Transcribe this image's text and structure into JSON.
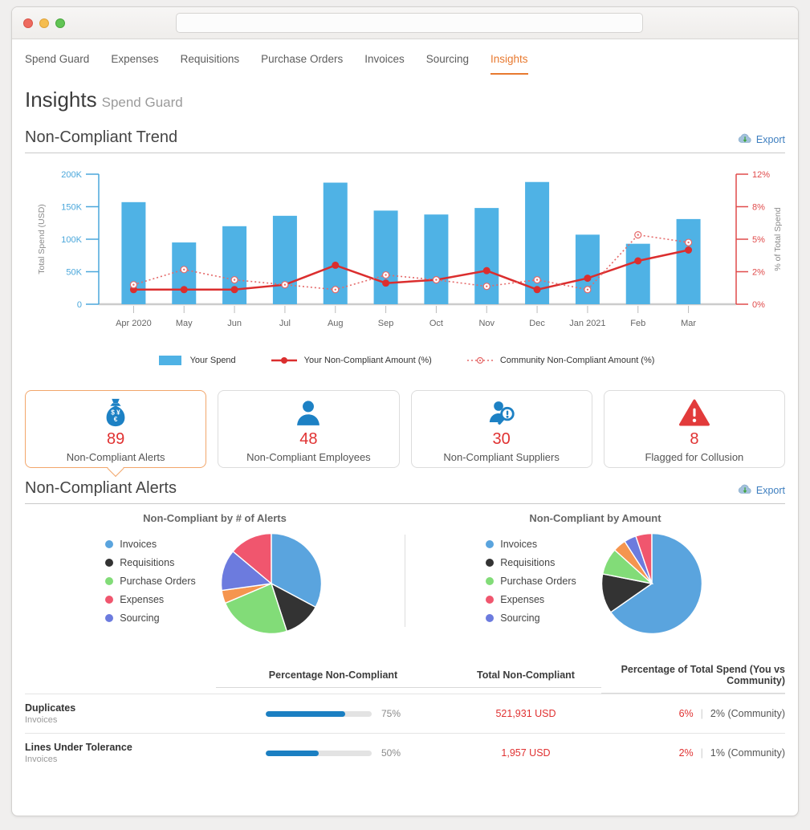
{
  "window": {
    "url_value": ""
  },
  "nav": {
    "items": [
      {
        "label": "Spend Guard",
        "active": false
      },
      {
        "label": "Expenses",
        "active": false
      },
      {
        "label": "Requisitions",
        "active": false
      },
      {
        "label": "Purchase Orders",
        "active": false
      },
      {
        "label": "Invoices",
        "active": false
      },
      {
        "label": "Sourcing",
        "active": false
      },
      {
        "label": "Insights",
        "active": true
      }
    ]
  },
  "header": {
    "title": "Insights",
    "subtitle": "Spend Guard"
  },
  "trend_section": {
    "title": "Non-Compliant Trend",
    "export_label": "Export"
  },
  "alerts_section": {
    "title": "Non-Compliant Alerts",
    "export_label": "Export"
  },
  "cards": [
    {
      "icon": "money-bag-icon",
      "value": "89",
      "label": "Non-Compliant Alerts",
      "selected": true
    },
    {
      "icon": "employee-icon",
      "value": "48",
      "label": "Non-Compliant Employees",
      "selected": false
    },
    {
      "icon": "supplier-search-icon",
      "value": "30",
      "label": "Non-Compliant Suppliers",
      "selected": false
    },
    {
      "icon": "warning-triangle-icon",
      "value": "8",
      "label": "Flagged for Collusion",
      "selected": false
    }
  ],
  "chart_data": [
    {
      "type": "bar",
      "title": "Non-Compliant Trend",
      "categories": [
        "Apr 2020",
        "May",
        "Jun",
        "Jul",
        "Aug",
        "Sep",
        "Oct",
        "Nov",
        "Dec",
        "Jan 2021",
        "Feb",
        "Mar"
      ],
      "series": [
        {
          "name": "Your Spend",
          "kind": "bar",
          "axis": "left",
          "color": "#4FB2E5",
          "values": [
            157000,
            95000,
            120000,
            136000,
            187000,
            144000,
            138000,
            148000,
            188000,
            107000,
            93000,
            131000
          ]
        },
        {
          "name": "Your Non-Compliant Amount (%)",
          "kind": "line",
          "style": "solid",
          "axis": "right",
          "color": "#DB2E2E",
          "values": [
            0.9,
            0.9,
            0.9,
            1.2,
            2.6,
            1.3,
            1.5,
            2.1,
            0.9,
            1.6,
            3.0,
            4.0
          ]
        },
        {
          "name": "Community Non-Compliant Amount (%)",
          "kind": "line",
          "style": "dotted",
          "axis": "right",
          "color": "#E56A6A",
          "values": [
            1.2,
            2.2,
            1.5,
            1.2,
            0.9,
            1.8,
            1.5,
            1.1,
            1.5,
            0.9,
            5.4,
            4.7
          ]
        }
      ],
      "left_axis": {
        "label": "Total Spend (USD)",
        "tick_labels": [
          "0",
          "50K",
          "100K",
          "150K",
          "200K"
        ],
        "tick_values": [
          0,
          50000,
          100000,
          150000,
          200000
        ]
      },
      "right_axis": {
        "label": "% of Total Spend",
        "tick_labels": [
          "0%",
          "2%",
          "5%",
          "8%",
          "12%"
        ],
        "tick_values": [
          0,
          2,
          5,
          8,
          12
        ]
      },
      "grid": false,
      "legend_position": "bottom"
    },
    {
      "type": "pie",
      "title": "Non-Compliant by # of Alerts",
      "legend": [
        {
          "label": "Invoices",
          "color": "#5AA4DE"
        },
        {
          "label": "Requisitions",
          "color": "#333333"
        },
        {
          "label": "Purchase Orders",
          "color": "#82DC78"
        },
        {
          "label": "Expenses",
          "color": "#F0566E"
        },
        {
          "label": "Sourcing",
          "color": "#6C7BDE"
        }
      ],
      "slices": [
        {
          "label": "Invoices",
          "color": "#5AA4DE",
          "pct": 32.8
        },
        {
          "label": "Requisitions",
          "color": "#333333",
          "pct": 12.2
        },
        {
          "label": "Purchase Orders",
          "color": "#82DC78",
          "pct": 23.6
        },
        {
          "label": "",
          "color": "#F5954F",
          "pct": 4.2
        },
        {
          "label": "Sourcing",
          "color": "#6C7BDE",
          "pct": 13.3
        },
        {
          "label": "Expenses",
          "color": "#F0566E",
          "pct": 13.9
        }
      ]
    },
    {
      "type": "pie",
      "title": "Non-Compliant by Amount",
      "legend": [
        {
          "label": "Invoices",
          "color": "#5AA4DE"
        },
        {
          "label": "Requisitions",
          "color": "#333333"
        },
        {
          "label": "Purchase Orders",
          "color": "#82DC78"
        },
        {
          "label": "Expenses",
          "color": "#F0566E"
        },
        {
          "label": "Sourcing",
          "color": "#6C7BDE"
        }
      ],
      "slices": [
        {
          "label": "Invoices",
          "color": "#5AA4DE",
          "pct": 65.3
        },
        {
          "label": "Requisitions",
          "color": "#333333",
          "pct": 12.8
        },
        {
          "label": "Purchase Orders",
          "color": "#82DC78",
          "pct": 8.6
        },
        {
          "label": "",
          "color": "#F5954F",
          "pct": 4.2
        },
        {
          "label": "Sourcing",
          "color": "#6C7BDE",
          "pct": 3.9
        },
        {
          "label": "Expenses",
          "color": "#F0566E",
          "pct": 5.2
        }
      ]
    }
  ],
  "alerts_table": {
    "columns": [
      "",
      "Percentage Non-Compliant",
      "Total Non-Compliant",
      "Percentage of Total Spend (You vs Community)"
    ],
    "rows": [
      {
        "name": "Duplicates",
        "category": "Invoices",
        "pct_value": 75,
        "pct_label": "75%",
        "total": "521,931 USD",
        "you_pct": "6%",
        "community_pct": "2% (Community)"
      },
      {
        "name": "Lines Under Tolerance",
        "category": "Invoices",
        "pct_value": 50,
        "pct_label": "50%",
        "total": "1,957 USD",
        "you_pct": "2%",
        "community_pct": "1% (Community)"
      }
    ]
  },
  "colors": {
    "accent_orange": "#E8792F",
    "card_selected_border": "#F2A66B",
    "bar_blue": "#4FB2E5",
    "axis_blue": "#4AA7DB",
    "axis_red": "#E04B4B",
    "line_red": "#DB2E2E",
    "community_red": "#E56A6A",
    "export_blue": "#3D7EBF",
    "value_red": "#E03131",
    "progress_blue": "#1B7FC2"
  }
}
